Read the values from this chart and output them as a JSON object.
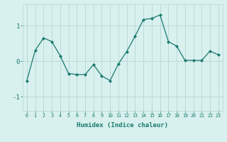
{
  "x": [
    0,
    1,
    2,
    3,
    4,
    5,
    6,
    7,
    8,
    9,
    10,
    11,
    12,
    13,
    14,
    15,
    16,
    17,
    18,
    19,
    20,
    21,
    22,
    23
  ],
  "y": [
    -0.55,
    0.3,
    0.65,
    0.55,
    0.15,
    -0.35,
    -0.38,
    -0.38,
    -0.1,
    -0.42,
    -0.55,
    -0.08,
    0.27,
    0.7,
    1.17,
    1.2,
    1.3,
    0.55,
    0.42,
    0.02,
    0.02,
    0.02,
    0.28,
    0.18
  ],
  "line_color": "#1a7a6e",
  "marker": "D",
  "marker_size": 2,
  "bg_color": "#d8f0ee",
  "grid_color": "#b8d8d4",
  "xlabel": "Humidex (Indice chaleur)",
  "ylim": [
    -1.4,
    1.6
  ],
  "xlim": [
    -0.5,
    23.5
  ],
  "yticks": [
    -1,
    0,
    1
  ],
  "xticks": [
    0,
    1,
    2,
    3,
    4,
    5,
    6,
    7,
    8,
    9,
    10,
    11,
    12,
    13,
    14,
    15,
    16,
    17,
    18,
    19,
    20,
    21,
    22,
    23
  ],
  "xlabel_fontsize": 6.5,
  "xtick_fontsize": 4.8,
  "ytick_fontsize": 6.5
}
